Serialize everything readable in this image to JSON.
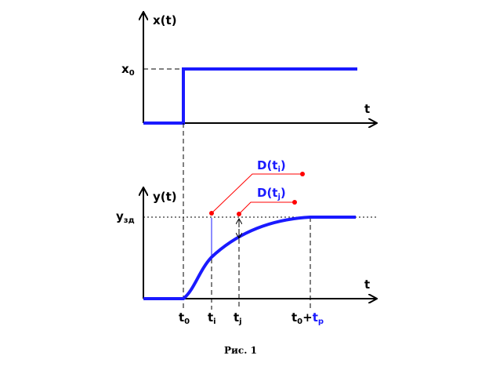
{
  "top_plot": {
    "y_axis_label": "x(t)",
    "t_axis_label": "t",
    "level_label": "x",
    "level_sub": "0"
  },
  "bottom_plot": {
    "y_axis_label": "y(t)",
    "t_axis_label": "t",
    "level_label": "y",
    "level_sub": "зд",
    "tick_t0": "t",
    "tick_t0_sub": "0",
    "tick_ti": "t",
    "tick_ti_sub": "i",
    "tick_tj": "t",
    "tick_tj_sub": "j",
    "tick_tp": "t",
    "tick_tp_sub": "0",
    "tick_tp_plus": "+",
    "tick_tp_t": "t",
    "tick_tp_t_sub": "p",
    "callout_i_text": "D(t",
    "callout_i_sub": "i",
    "callout_i_close": ")",
    "callout_j_text": "D(t",
    "callout_j_sub": "j",
    "callout_j_close": ")"
  },
  "caption": "Рис. 1",
  "colors": {
    "curve": "#1a1aff",
    "callout": "#ff0000",
    "axes": "#000000"
  }
}
